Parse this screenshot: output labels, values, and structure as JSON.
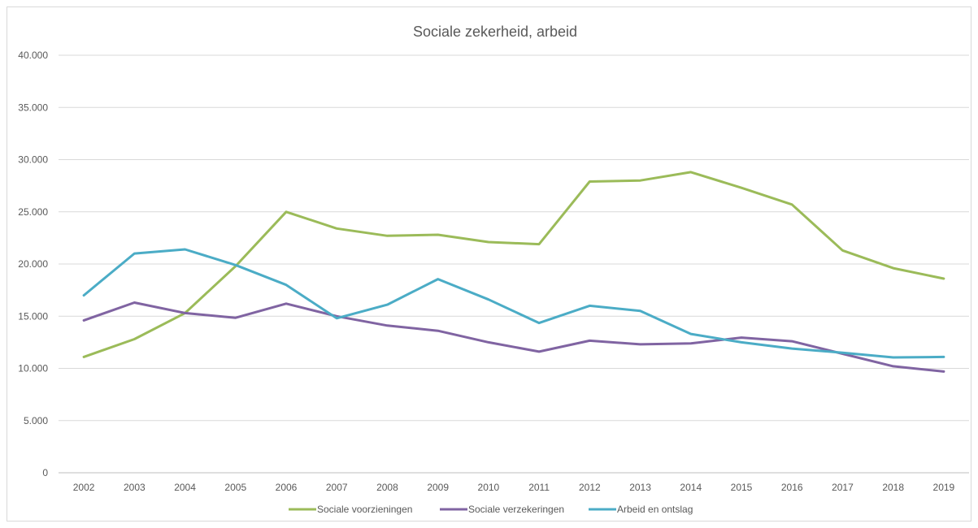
{
  "chart_data": {
    "type": "line",
    "title": "Sociale zekerheid, arbeid",
    "xlabel": "",
    "ylabel": "",
    "ylim": [
      0,
      40000
    ],
    "y_ticks": [
      "0",
      "5.000",
      "10.000",
      "15.000",
      "20.000",
      "25.000",
      "30.000",
      "35.000",
      "40.000"
    ],
    "y_tick_values": [
      0,
      5000,
      10000,
      15000,
      20000,
      25000,
      30000,
      35000,
      40000
    ],
    "grid": true,
    "legend_position": "bottom",
    "categories": [
      "2002",
      "2003",
      "2004",
      "2005",
      "2006",
      "2007",
      "2008",
      "2009",
      "2010",
      "2011",
      "2012",
      "2013",
      "2014",
      "2015",
      "2016",
      "2017",
      "2018",
      "2019"
    ],
    "series": [
      {
        "name": "Sociale voorzieningen",
        "color": "#9bbb59",
        "values": [
          11100,
          12800,
          15300,
          19800,
          25000,
          23400,
          22700,
          22800,
          22100,
          21900,
          27900,
          28000,
          28800,
          27300,
          25700,
          21300,
          19600,
          18600
        ]
      },
      {
        "name": "Sociale verzekeringen",
        "color": "#8064a2",
        "values": [
          14600,
          16300,
          15300,
          14850,
          16200,
          15000,
          14100,
          13600,
          12500,
          11600,
          12650,
          12300,
          12400,
          12950,
          12600,
          11400,
          10200,
          9700
        ]
      },
      {
        "name": "Arbeid en ontslag",
        "color": "#4bacc6",
        "values": [
          17000,
          21000,
          21400,
          19900,
          18000,
          14800,
          16100,
          18550,
          16600,
          14350,
          16000,
          15500,
          13300,
          12500,
          11900,
          11500,
          11050,
          11100
        ]
      }
    ]
  }
}
